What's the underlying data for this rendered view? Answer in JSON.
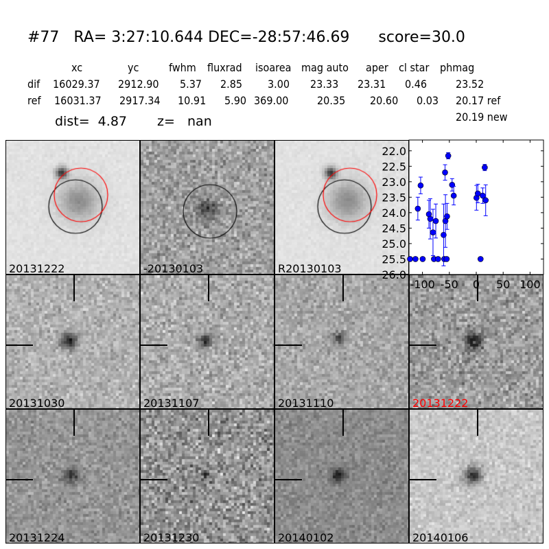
{
  "header": {
    "title": "#77   RA= 3:27:10.644 DEC=-28:57:46.69      score=30.0"
  },
  "table": {
    "columns": [
      "xc",
      "yc",
      "fwhm",
      "fluxrad",
      "isoarea",
      "mag auto",
      "aper",
      "cl star",
      "phmag"
    ],
    "rows": [
      {
        "label": "dif",
        "values": [
          "16029.37",
          "2912.90",
          "5.37",
          "2.85",
          "3.00",
          "23.33",
          "23.31",
          "0.46",
          "23.52"
        ]
      },
      {
        "label": "ref",
        "values": [
          "16031.37",
          "2917.34",
          "10.91",
          "5.90",
          "369.00",
          "20.35",
          "20.60",
          "0.03",
          "20.17 ref"
        ]
      }
    ],
    "extra_phmag": "20.19 new",
    "dist": "dist=  4.87",
    "z": "z=   nan"
  },
  "panels": [
    {
      "label": "20131222"
    },
    {
      "label": "-20130103"
    },
    {
      "label": "R20130103"
    },
    {
      "label": "20131030"
    },
    {
      "label": "20131107"
    },
    {
      "label": "20131110"
    },
    {
      "label": "20131222",
      "color": "#ff0000"
    },
    {
      "label": "20131224"
    },
    {
      "label": "20131230"
    },
    {
      "label": "20140102"
    },
    {
      "label": "20140106"
    }
  ],
  "colors": {
    "marker": "#0000ff",
    "red_circle": "#ff0000",
    "black_circle": "#000000"
  },
  "chart_data": {
    "type": "scatter",
    "title": "",
    "xlabel": "",
    "ylabel": "",
    "xlim": [
      -125,
      125
    ],
    "ylim": [
      26.0,
      21.65
    ],
    "y_inverted": true,
    "xticks": [
      "-100",
      "-50",
      "0",
      "50",
      "100"
    ],
    "xtick_values": [
      -100,
      -50,
      0,
      50,
      100
    ],
    "yticks": [
      "22.0",
      "22.5",
      "23.0",
      "23.5",
      "24.0",
      "24.5",
      "25.0",
      "25.5",
      "26.0"
    ],
    "ytick_values": [
      22.0,
      22.5,
      23.0,
      23.5,
      24.0,
      24.5,
      25.0,
      25.5,
      26.0
    ],
    "grid": false,
    "points": [
      {
        "x": -123,
        "y": 25.5,
        "err": 0
      },
      {
        "x": -113,
        "y": 25.5,
        "err": 0
      },
      {
        "x": -99.6,
        "y": 25.5,
        "err": 0
      },
      {
        "x": -108.6,
        "y": 23.87,
        "err": 0.37
      },
      {
        "x": -103.4,
        "y": 23.12,
        "err": 0.27
      },
      {
        "x": -88,
        "y": 24.05,
        "err": 0.45
      },
      {
        "x": -85.5,
        "y": 24.2,
        "err": 0.65
      },
      {
        "x": -80.4,
        "y": 24.64,
        "err": 0.75
      },
      {
        "x": -78.6,
        "y": 25.5,
        "err": 0
      },
      {
        "x": -75.2,
        "y": 24.27,
        "err": 0.55
      },
      {
        "x": -71,
        "y": 25.5,
        "err": 0
      },
      {
        "x": -60.7,
        "y": 24.72,
        "err": 1.0
      },
      {
        "x": -59.4,
        "y": 25.5,
        "err": 0
      },
      {
        "x": -58,
        "y": 22.7,
        "err": 0.25
      },
      {
        "x": -57.3,
        "y": 24.27,
        "err": 0.85
      },
      {
        "x": -55,
        "y": 25.5,
        "err": 0
      },
      {
        "x": -54.3,
        "y": 24.12,
        "err": 0.42
      },
      {
        "x": -52.1,
        "y": 22.16,
        "err": 0.1
      },
      {
        "x": -44.9,
        "y": 23.1,
        "err": 0.2
      },
      {
        "x": -41.9,
        "y": 23.45,
        "err": 0.3
      },
      {
        "x": 0.4,
        "y": 23.52,
        "err": 0.4
      },
      {
        "x": 2.9,
        "y": 23.38,
        "err": 0.3
      },
      {
        "x": 8,
        "y": 25.5,
        "err": 0
      },
      {
        "x": 12,
        "y": 23.45,
        "err": 0.25
      },
      {
        "x": 15.8,
        "y": 22.54,
        "err": 0.1
      },
      {
        "x": 17.5,
        "y": 23.6,
        "err": 0.5
      }
    ]
  }
}
